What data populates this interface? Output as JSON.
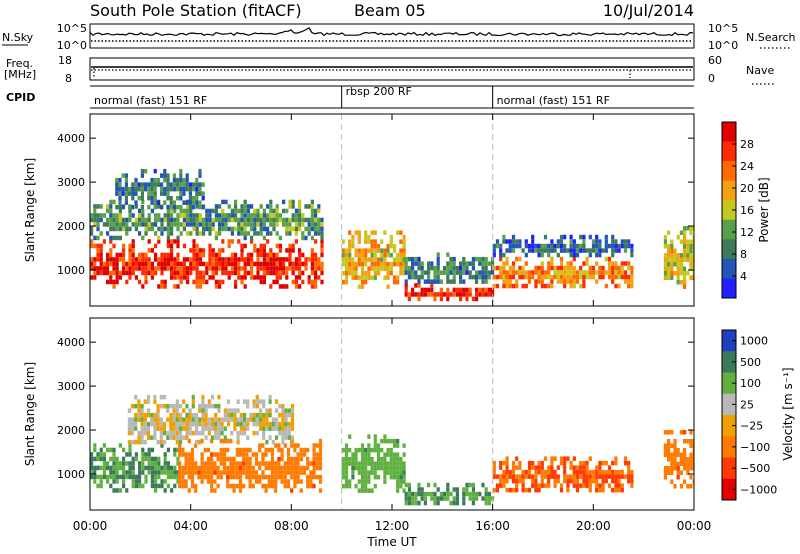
{
  "header": {
    "station": "South Pole Station (fitACF)",
    "beam": "Beam 05",
    "date": "10/Jul/2014"
  },
  "noise_panel": {
    "left_label": "N.Sky",
    "right_label": "N.Search",
    "left_ticks": [
      "10^5",
      "10^0"
    ],
    "right_ticks": [
      "10^5",
      "10^0"
    ]
  },
  "freq_panel": {
    "left_label_1": "Freq.",
    "left_label_2": "[MHz]",
    "right_label": "Nave",
    "left_ticks": [
      "18",
      "8"
    ],
    "right_ticks": [
      "60",
      "0"
    ],
    "freq_value_mhz": 14.0
  },
  "cpid": {
    "label": "CPID",
    "segments": [
      {
        "name": "normal (fast) 151 RF",
        "start_hr": 0,
        "end_hr": 10
      },
      {
        "name": "rbsp 200 RF",
        "start_hr": 10,
        "end_hr": 16
      },
      {
        "name": "normal (fast) 151 RF",
        "start_hr": 16,
        "end_hr": 24
      }
    ]
  },
  "xaxis": {
    "label": "Time UT",
    "ticks": [
      "00:00",
      "04:00",
      "08:00",
      "12:00",
      "16:00",
      "20:00",
      "00:00"
    ],
    "range_hr": [
      0,
      24
    ]
  },
  "power_panel": {
    "ylabel": "Slant Range [km]",
    "yticks": [
      "1000",
      "2000",
      "3000",
      "4000"
    ],
    "colorbar_label": "Power [dB]",
    "colorbar_ticks": [
      "4",
      "8",
      "12",
      "16",
      "20",
      "24",
      "28"
    ]
  },
  "velocity_panel": {
    "ylabel": "Slant Range [km]",
    "yticks": [
      "1000",
      "2000",
      "3000",
      "4000"
    ],
    "colorbar_label": "Velocity [m s⁻¹]",
    "colorbar_ticks": [
      "1000",
      "500",
      "100",
      "25",
      "−25",
      "−100",
      "−500",
      "−1000"
    ]
  },
  "colors": {
    "power_scale": [
      "#1f1fff",
      "#2255b5",
      "#3c7a5a",
      "#58a04a",
      "#c5c820",
      "#f5a010",
      "#ff6a00",
      "#ff2a00",
      "#e00000"
    ],
    "velocity_scale": [
      "#2040c0",
      "#3a7a58",
      "#60b040",
      "#b8b8b8",
      "#f0a000",
      "#ff7a00",
      "#ff3a00",
      "#e00000"
    ]
  },
  "chart_data": [
    {
      "type": "heatmap",
      "title": "",
      "xlabel": "Time UT",
      "ylabel": "Slant Range [km]",
      "xlim": [
        0,
        24
      ],
      "ylim": [
        180,
        4550
      ],
      "value_label": "Power [dB]",
      "value_range": [
        0,
        30
      ],
      "regions": [
        {
          "t0": 0.0,
          "t1": 9.2,
          "r_low": 600,
          "r_high": 1700,
          "level_db": 26
        },
        {
          "t0": 0.0,
          "t1": 9.2,
          "r_low": 1700,
          "r_high": 2600,
          "level_db": 10
        },
        {
          "t0": 1.0,
          "t1": 4.5,
          "r_low": 2400,
          "r_high": 3300,
          "level_db": 8
        },
        {
          "t0": 10.0,
          "t1": 12.5,
          "r_low": 600,
          "r_high": 1900,
          "level_db": 18
        },
        {
          "t0": 12.5,
          "t1": 16.0,
          "r_low": 300,
          "r_high": 700,
          "level_db": 26
        },
        {
          "t0": 12.5,
          "t1": 16.0,
          "r_low": 700,
          "r_high": 1400,
          "level_db": 8
        },
        {
          "t0": 16.0,
          "t1": 21.5,
          "r_low": 600,
          "r_high": 1300,
          "level_db": 20
        },
        {
          "t0": 16.0,
          "t1": 21.5,
          "r_low": 1300,
          "r_high": 1800,
          "level_db": 6
        },
        {
          "t0": 22.8,
          "t1": 24.0,
          "r_low": 600,
          "r_high": 2000,
          "level_db": 16
        }
      ]
    },
    {
      "type": "heatmap",
      "title": "",
      "xlabel": "Time UT",
      "ylabel": "Slant Range [km]",
      "xlim": [
        0,
        24
      ],
      "ylim": [
        180,
        4550
      ],
      "value_label": "Velocity [m s⁻¹]",
      "value_range": [
        -1000,
        1000
      ],
      "regions": [
        {
          "t0": 0.0,
          "t1": 3.5,
          "r_low": 600,
          "r_high": 1700,
          "level_v": 300
        },
        {
          "t0": 3.5,
          "t1": 9.2,
          "r_low": 600,
          "r_high": 1800,
          "level_v": -200
        },
        {
          "t0": 1.5,
          "t1": 8.0,
          "r_low": 1700,
          "r_high": 2800,
          "level_v": 15
        },
        {
          "t0": 10.0,
          "t1": 12.5,
          "r_low": 600,
          "r_high": 1900,
          "level_v": 200
        },
        {
          "t0": 12.5,
          "t1": 16.0,
          "r_low": 300,
          "r_high": 800,
          "level_v": 300
        },
        {
          "t0": 16.0,
          "t1": 21.5,
          "r_low": 600,
          "r_high": 1400,
          "level_v": -300
        },
        {
          "t0": 22.8,
          "t1": 24.0,
          "r_low": 700,
          "r_high": 2000,
          "level_v": -200
        }
      ]
    }
  ]
}
